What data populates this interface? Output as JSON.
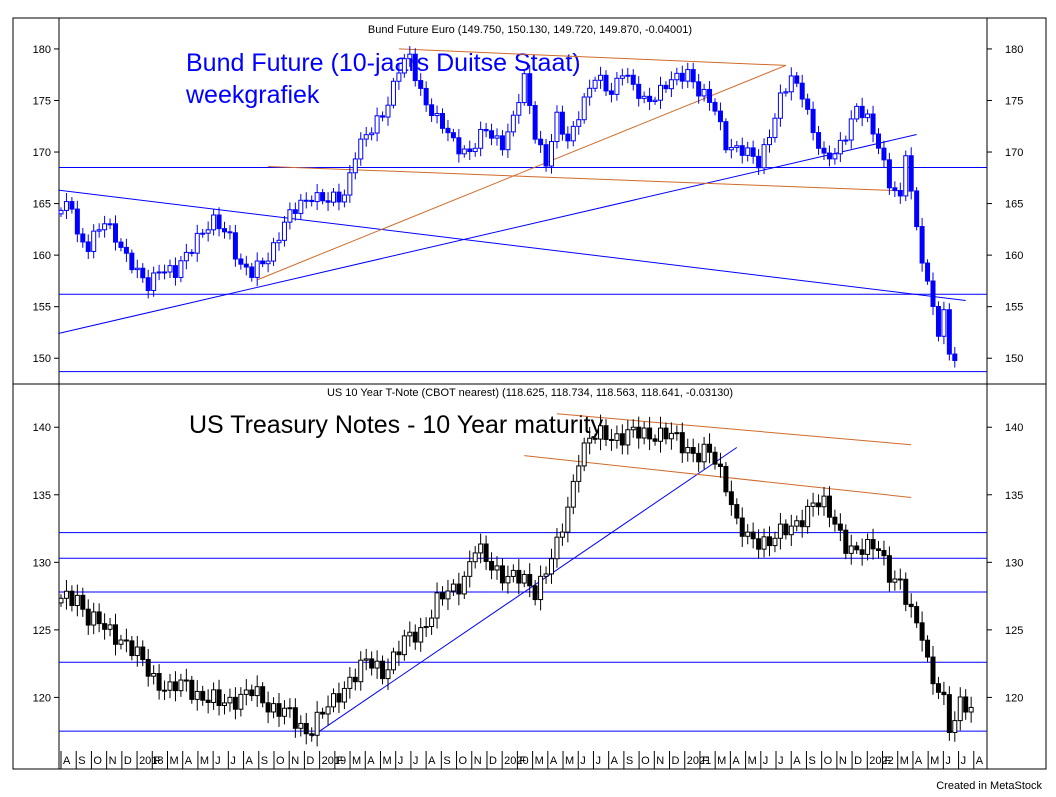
{
  "credit": "Created in MetaStock",
  "colors": {
    "price": "#0000ff",
    "price2": "#000000",
    "trend_blue": "#0000ff",
    "trend_orange": "#d06a2a"
  },
  "time_axis": {
    "labels": [
      "A",
      "S",
      "O",
      "N",
      "D",
      "2018",
      "F",
      "M",
      "A",
      "M",
      "J",
      "J",
      "A",
      "S",
      "O",
      "N",
      "D",
      "2019",
      "F",
      "M",
      "A",
      "M",
      "J",
      "J",
      "A",
      "S",
      "O",
      "N",
      "D",
      "2020",
      "F",
      "M",
      "A",
      "M",
      "J",
      "J",
      "A",
      "S",
      "O",
      "N",
      "D",
      "2021",
      "F",
      "M",
      "A",
      "M",
      "J",
      "J",
      "A",
      "S",
      "O",
      "N",
      "D",
      "2022",
      "F",
      "M",
      "A",
      "M",
      "J",
      "J",
      "A"
    ]
  },
  "chart_data": [
    {
      "type": "candlestick",
      "header": "Bund Future Euro (149.750, 150.130, 149.720, 149.870, -0.04001)",
      "title": "Bund Future (10-jaars Duitse Staat)",
      "subtitle": "weekgrafiek",
      "ylim": [
        147.5,
        183
      ],
      "yticks": [
        150,
        155,
        160,
        165,
        170,
        175,
        180
      ],
      "points": [
        [
          0,
          164
        ],
        [
          2,
          165
        ],
        [
          3,
          162
        ],
        [
          5,
          161
        ],
        [
          8,
          163
        ],
        [
          10,
          162
        ],
        [
          12,
          160
        ],
        [
          14,
          158
        ],
        [
          16,
          157
        ],
        [
          18,
          159
        ],
        [
          21,
          158
        ],
        [
          23,
          160
        ],
        [
          25,
          162
        ],
        [
          28,
          163
        ],
        [
          31,
          162
        ],
        [
          33,
          159
        ],
        [
          35,
          158
        ],
        [
          38,
          160
        ],
        [
          41,
          163
        ],
        [
          44,
          165
        ],
        [
          46,
          166
        ],
        [
          49,
          165
        ],
        [
          52,
          166
        ],
        [
          54,
          170
        ],
        [
          57,
          172
        ],
        [
          60,
          175
        ],
        [
          62,
          178
        ],
        [
          64,
          179
        ],
        [
          66,
          176
        ],
        [
          69,
          173
        ],
        [
          72,
          171
        ],
        [
          75,
          170
        ],
        [
          78,
          172
        ],
        [
          81,
          171
        ],
        [
          83,
          173
        ],
        [
          85,
          177
        ],
        [
          87,
          172
        ],
        [
          89,
          169
        ],
        [
          91,
          173
        ],
        [
          93,
          171
        ],
        [
          95,
          174
        ],
        [
          98,
          177
        ],
        [
          101,
          176
        ],
        [
          103,
          178
        ],
        [
          105,
          176
        ],
        [
          107,
          175
        ],
        [
          110,
          176
        ],
        [
          113,
          177
        ],
        [
          115,
          178
        ],
        [
          117,
          176
        ],
        [
          120,
          174
        ],
        [
          122,
          171
        ],
        [
          125,
          170
        ],
        [
          128,
          169
        ],
        [
          130,
          172
        ],
        [
          132,
          175
        ],
        [
          134,
          177
        ],
        [
          136,
          176
        ],
        [
          138,
          172
        ],
        [
          140,
          169
        ],
        [
          142,
          170
        ],
        [
          144,
          172
        ],
        [
          146,
          174
        ],
        [
          148,
          173
        ],
        [
          150,
          171
        ],
        [
          152,
          167
        ],
        [
          154,
          165
        ],
        [
          155,
          170
        ],
        [
          156,
          166
        ],
        [
          157,
          163
        ],
        [
          158,
          160
        ],
        [
          159,
          157
        ],
        [
          160,
          155
        ],
        [
          161,
          152
        ],
        [
          162,
          154
        ],
        [
          163,
          151
        ],
        [
          164,
          150
        ]
      ],
      "trendlines": [
        {
          "color": "blue",
          "x1": -0.5,
          "y1": 166.3,
          "x2": 166,
          "y2": 155.6
        },
        {
          "color": "blue",
          "x1": -0.5,
          "y1": 152.4,
          "x2": 157,
          "y2": 171.7
        },
        {
          "color": "orange",
          "x1": 36,
          "y1": 157.6,
          "x2": 133,
          "y2": 178.4
        },
        {
          "color": "orange",
          "x1": 62,
          "y1": 180.0,
          "x2": 133,
          "y2": 178.4
        },
        {
          "color": "orange",
          "x1": 38,
          "y1": 168.6,
          "x2": 156,
          "y2": 166.2
        }
      ],
      "hlines": [
        168.5,
        156.2,
        148.7
      ]
    },
    {
      "type": "candlestick",
      "header": "US 10 Year T-Note (CBOT nearest) (118.625, 118.734, 118.563, 118.641, -0.03130)",
      "title": "US Treasury Notes - 10 Year maturity",
      "ylim": [
        114.7,
        143.2
      ],
      "yticks": [
        120,
        125,
        130,
        135,
        140
      ],
      "points": [
        [
          0,
          127
        ],
        [
          3,
          127.5
        ],
        [
          5,
          126
        ],
        [
          8,
          125
        ],
        [
          11,
          124.5
        ],
        [
          14,
          123
        ],
        [
          17,
          121.5
        ],
        [
          20,
          120.5
        ],
        [
          23,
          121
        ],
        [
          26,
          120
        ],
        [
          29,
          119.5
        ],
        [
          32,
          120
        ],
        [
          35,
          120.3
        ],
        [
          38,
          119.5
        ],
        [
          41,
          119
        ],
        [
          43,
          118
        ],
        [
          45,
          117.5
        ],
        [
          47,
          118.5
        ],
        [
          50,
          119.5
        ],
        [
          53,
          121.5
        ],
        [
          56,
          122.5
        ],
        [
          59,
          122
        ],
        [
          61,
          123
        ],
        [
          63,
          124
        ],
        [
          66,
          125
        ],
        [
          69,
          127
        ],
        [
          72,
          128
        ],
        [
          74,
          129
        ],
        [
          76,
          131
        ],
        [
          78,
          130
        ],
        [
          80,
          129.5
        ],
        [
          82,
          129
        ],
        [
          85,
          128.5
        ],
        [
          87,
          128
        ],
        [
          89,
          129.5
        ],
        [
          91,
          131
        ],
        [
          93,
          134
        ],
        [
          95,
          138
        ],
        [
          97,
          139
        ],
        [
          100,
          139.5
        ],
        [
          103,
          139.3
        ],
        [
          106,
          139.5
        ],
        [
          109,
          139.6
        ],
        [
          112,
          139.2
        ],
        [
          115,
          138.5
        ],
        [
          117,
          138
        ],
        [
          119,
          138
        ],
        [
          120,
          137.3
        ],
        [
          122,
          136
        ],
        [
          124,
          133
        ],
        [
          126,
          131.5
        ],
        [
          128,
          131.5
        ],
        [
          131,
          132
        ],
        [
          134,
          132.3
        ],
        [
          136,
          133.5
        ],
        [
          138,
          134.5
        ],
        [
          140,
          134
        ],
        [
          142,
          133
        ],
        [
          144,
          131.5
        ],
        [
          146,
          130.5
        ],
        [
          148,
          131
        ],
        [
          150,
          131.5
        ],
        [
          152,
          129
        ],
        [
          154,
          128
        ],
        [
          156,
          126.5
        ],
        [
          158,
          125
        ],
        [
          159,
          122.5
        ],
        [
          160,
          121
        ],
        [
          162,
          119.5
        ],
        [
          163,
          118
        ],
        [
          164,
          118.5
        ],
        [
          165,
          120
        ],
        [
          166,
          119.5
        ],
        [
          167,
          118.6
        ]
      ],
      "trendlines": [
        {
          "color": "blue",
          "x1": 46,
          "y1": 117.1,
          "x2": 124,
          "y2": 138.5
        },
        {
          "color": "orange",
          "x1": 91,
          "y1": 141.0,
          "x2": 156,
          "y2": 138.7
        },
        {
          "color": "orange",
          "x1": 85,
          "y1": 137.9,
          "x2": 156,
          "y2": 134.8
        }
      ],
      "hlines": [
        132.2,
        130.3,
        127.8,
        122.6,
        117.5
      ]
    }
  ]
}
